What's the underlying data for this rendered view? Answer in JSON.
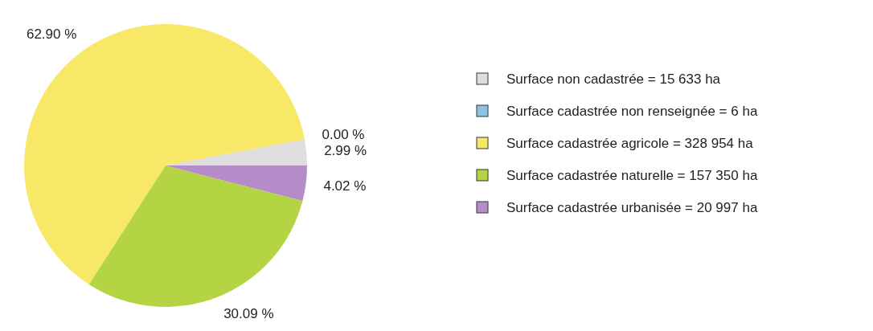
{
  "chart_data": {
    "type": "pie",
    "categories": [
      "Surface non cadastrée = 15 633 ha",
      "Surface cadastrée non renseignée = 6 ha",
      "Surface cadastrée agricole = 328 954 ha",
      "Surface cadastrée naturelle = 157 350 ha",
      "Surface cadastrée urbanisée = 20 997 ha"
    ],
    "values": [
      2.99,
      0.0,
      62.9,
      30.09,
      4.02
    ],
    "colors": [
      "#dedede",
      "#8ec2e2",
      "#f8e868",
      "#b5d444",
      "#b48cc8"
    ],
    "value_labels": [
      "2.99 %",
      "0.00 %",
      "62.90 %",
      "30.09 %",
      "4.02 %"
    ],
    "legend": "right"
  }
}
